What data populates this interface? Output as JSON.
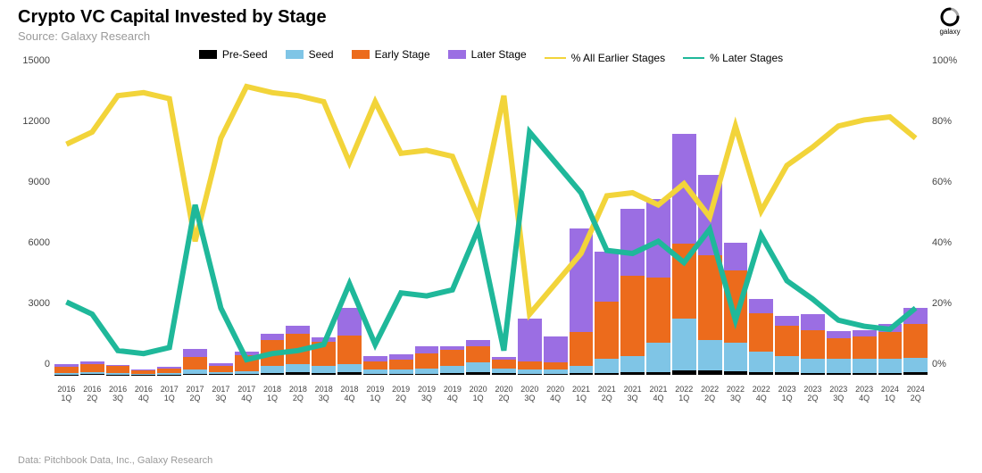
{
  "header": {
    "title": "Crypto VC Capital Invested by Stage",
    "subtitle": "Source: Galaxy Research",
    "logo_label": "galaxy",
    "logo_color": "#000000"
  },
  "footer": {
    "text": "Data: Pitchbook Data, Inc., Galaxy Research"
  },
  "chart": {
    "type": "stacked_bar_with_dual_lines",
    "background_color": "#ffffff",
    "left_axis": {
      "min": 0,
      "max": 15000,
      "step": 3000,
      "ticks": [
        0,
        3000,
        6000,
        9000,
        12000,
        15000
      ],
      "fontsize": 11
    },
    "right_axis": {
      "min": 0,
      "max": 100,
      "step": 20,
      "ticks": [
        "0%",
        "20%",
        "40%",
        "60%",
        "80%",
        "100%"
      ],
      "fontsize": 11
    },
    "categories": [
      {
        "year": "2016",
        "q": "1Q"
      },
      {
        "year": "2016",
        "q": "2Q"
      },
      {
        "year": "2016",
        "q": "3Q"
      },
      {
        "year": "2016",
        "q": "4Q"
      },
      {
        "year": "2017",
        "q": "1Q"
      },
      {
        "year": "2017",
        "q": "2Q"
      },
      {
        "year": "2017",
        "q": "3Q"
      },
      {
        "year": "2017",
        "q": "4Q"
      },
      {
        "year": "2018",
        "q": "1Q"
      },
      {
        "year": "2018",
        "q": "2Q"
      },
      {
        "year": "2018",
        "q": "3Q"
      },
      {
        "year": "2018",
        "q": "4Q"
      },
      {
        "year": "2019",
        "q": "1Q"
      },
      {
        "year": "2019",
        "q": "2Q"
      },
      {
        "year": "2019",
        "q": "3Q"
      },
      {
        "year": "2019",
        "q": "4Q"
      },
      {
        "year": "2020",
        "q": "1Q"
      },
      {
        "year": "2020",
        "q": "2Q"
      },
      {
        "year": "2020",
        "q": "3Q"
      },
      {
        "year": "2020",
        "q": "4Q"
      },
      {
        "year": "2021",
        "q": "1Q"
      },
      {
        "year": "2021",
        "q": "2Q"
      },
      {
        "year": "2021",
        "q": "3Q"
      },
      {
        "year": "2021",
        "q": "4Q"
      },
      {
        "year": "2022",
        "q": "1Q"
      },
      {
        "year": "2022",
        "q": "2Q"
      },
      {
        "year": "2022",
        "q": "3Q"
      },
      {
        "year": "2022",
        "q": "4Q"
      },
      {
        "year": "2023",
        "q": "1Q"
      },
      {
        "year": "2023",
        "q": "2Q"
      },
      {
        "year": "2023",
        "q": "3Q"
      },
      {
        "year": "2023",
        "q": "4Q"
      },
      {
        "year": "2024",
        "q": "1Q"
      },
      {
        "year": "2024",
        "q": "2Q"
      }
    ],
    "series_bars": [
      {
        "name": "Pre-Seed",
        "color": "#000000",
        "values": [
          20,
          30,
          20,
          10,
          20,
          30,
          30,
          40,
          100,
          120,
          100,
          150,
          60,
          60,
          60,
          80,
          120,
          80,
          60,
          60,
          80,
          100,
          120,
          150,
          200,
          200,
          180,
          150,
          120,
          100,
          100,
          100,
          100,
          120
        ]
      },
      {
        "name": "Seed",
        "color": "#7fc5e6",
        "values": [
          80,
          100,
          60,
          40,
          60,
          250,
          100,
          150,
          350,
          400,
          350,
          400,
          200,
          200,
          250,
          350,
          500,
          250,
          200,
          200,
          350,
          700,
          800,
          1450,
          2600,
          1500,
          1400,
          1000,
          800,
          700,
          700,
          700,
          700,
          700
        ]
      },
      {
        "name": "Early Stage",
        "color": "#ec6b1c",
        "values": [
          300,
          400,
          350,
          150,
          250,
          600,
          300,
          800,
          1250,
          1500,
          1200,
          1400,
          400,
          500,
          750,
          800,
          800,
          400,
          400,
          350,
          1700,
          2800,
          4000,
          3200,
          3700,
          4200,
          3600,
          1900,
          1500,
          1400,
          1000,
          1100,
          1300,
          1700
        ]
      },
      {
        "name": "Later Stage",
        "color": "#9b6ee3",
        "values": [
          150,
          150,
          50,
          50,
          50,
          400,
          150,
          150,
          350,
          400,
          200,
          1350,
          250,
          250,
          350,
          200,
          300,
          150,
          2100,
          1300,
          5100,
          2500,
          3300,
          3900,
          5400,
          4000,
          1350,
          700,
          500,
          800,
          350,
          300,
          400,
          800
        ]
      }
    ],
    "series_lines": [
      {
        "name": "% All Earlier Stages",
        "color": "#f2d43a",
        "width": 2,
        "values": [
          76,
          80,
          92,
          93,
          91,
          44,
          78,
          95,
          93,
          92,
          90,
          70,
          90,
          73,
          74,
          72,
          52,
          92,
          20,
          30,
          40,
          59,
          60,
          56,
          63,
          52,
          82,
          54,
          69,
          75,
          82,
          84,
          85,
          78
        ]
      },
      {
        "name": "% Later Stages",
        "color": "#1fb89a",
        "width": 2,
        "values": [
          24,
          20,
          8,
          7,
          9,
          56,
          22,
          5,
          7,
          8,
          10,
          30,
          10,
          27,
          26,
          28,
          48,
          8,
          80,
          70,
          60,
          41,
          40,
          44,
          37,
          48,
          18,
          46,
          31,
          25,
          18,
          16,
          15,
          22
        ]
      }
    ],
    "legend": [
      {
        "type": "bar",
        "label": "Pre-Seed",
        "color": "#000000"
      },
      {
        "type": "bar",
        "label": "Seed",
        "color": "#7fc5e6"
      },
      {
        "type": "bar",
        "label": "Early Stage",
        "color": "#ec6b1c"
      },
      {
        "type": "bar",
        "label": "Later Stage",
        "color": "#9b6ee3"
      },
      {
        "type": "line",
        "label": "% All Earlier Stages",
        "color": "#f2d43a"
      },
      {
        "type": "line",
        "label": "% Later Stages",
        "color": "#1fb89a"
      }
    ],
    "label_fontsize": 12,
    "xaxis_fontsize": 9,
    "title_fontsize": 20
  }
}
